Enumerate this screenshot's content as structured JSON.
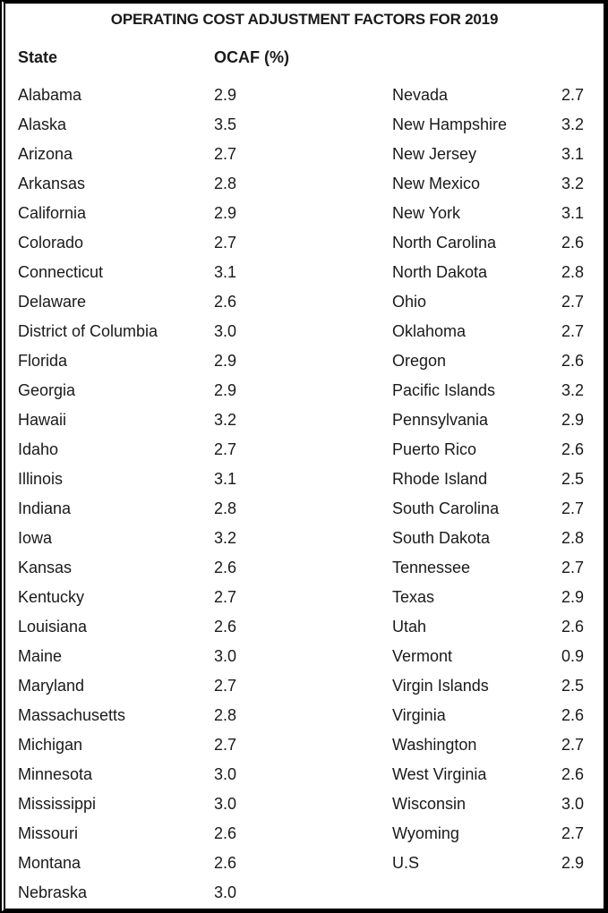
{
  "chart_data": {
    "type": "table",
    "title": "OPERATING COST ADJUSTMENT FACTORS FOR 2019",
    "columns": [
      "State",
      "OCAF (%)"
    ],
    "left_column_count": 28,
    "rows": [
      {
        "state": "Alabama",
        "ocaf": "2.9"
      },
      {
        "state": "Alaska",
        "ocaf": "3.5"
      },
      {
        "state": "Arizona",
        "ocaf": "2.7"
      },
      {
        "state": "Arkansas",
        "ocaf": "2.8"
      },
      {
        "state": "California",
        "ocaf": "2.9"
      },
      {
        "state": "Colorado",
        "ocaf": "2.7"
      },
      {
        "state": "Connecticut",
        "ocaf": "3.1"
      },
      {
        "state": "Delaware",
        "ocaf": "2.6"
      },
      {
        "state": "District of Columbia",
        "ocaf": "3.0"
      },
      {
        "state": "Florida",
        "ocaf": "2.9"
      },
      {
        "state": "Georgia",
        "ocaf": "2.9"
      },
      {
        "state": "Hawaii",
        "ocaf": "3.2"
      },
      {
        "state": "Idaho",
        "ocaf": "2.7"
      },
      {
        "state": "Illinois",
        "ocaf": "3.1"
      },
      {
        "state": "Indiana",
        "ocaf": "2.8"
      },
      {
        "state": "Iowa",
        "ocaf": "3.2"
      },
      {
        "state": "Kansas",
        "ocaf": "2.6"
      },
      {
        "state": "Kentucky",
        "ocaf": "2.7"
      },
      {
        "state": "Louisiana",
        "ocaf": "2.6"
      },
      {
        "state": "Maine",
        "ocaf": "3.0"
      },
      {
        "state": "Maryland",
        "ocaf": "2.7"
      },
      {
        "state": "Massachusetts",
        "ocaf": "2.8"
      },
      {
        "state": "Michigan",
        "ocaf": "2.7"
      },
      {
        "state": "Minnesota",
        "ocaf": "3.0"
      },
      {
        "state": "Mississippi",
        "ocaf": "3.0"
      },
      {
        "state": "Missouri",
        "ocaf": "2.6"
      },
      {
        "state": "Montana",
        "ocaf": "2.6"
      },
      {
        "state": "Nebraska",
        "ocaf": "3.0"
      },
      {
        "state": "Nevada",
        "ocaf": "2.7"
      },
      {
        "state": "New Hampshire",
        "ocaf": "3.2"
      },
      {
        "state": "New Jersey",
        "ocaf": "3.1"
      },
      {
        "state": "New Mexico",
        "ocaf": "3.2"
      },
      {
        "state": "New York",
        "ocaf": "3.1"
      },
      {
        "state": "North Carolina",
        "ocaf": "2.6"
      },
      {
        "state": "North Dakota",
        "ocaf": "2.8"
      },
      {
        "state": "Ohio",
        "ocaf": "2.7"
      },
      {
        "state": "Oklahoma",
        "ocaf": "2.7"
      },
      {
        "state": "Oregon",
        "ocaf": "2.6"
      },
      {
        "state": "Pacific Islands",
        "ocaf": "3.2"
      },
      {
        "state": "Pennsylvania",
        "ocaf": "2.9"
      },
      {
        "state": "Puerto Rico",
        "ocaf": "2.6"
      },
      {
        "state": "Rhode Island",
        "ocaf": "2.5"
      },
      {
        "state": "South Carolina",
        "ocaf": "2.7"
      },
      {
        "state": "South Dakota",
        "ocaf": "2.8"
      },
      {
        "state": "Tennessee",
        "ocaf": "2.7"
      },
      {
        "state": "Texas",
        "ocaf": "2.9"
      },
      {
        "state": "Utah",
        "ocaf": "2.6"
      },
      {
        "state": "Vermont",
        "ocaf": "0.9"
      },
      {
        "state": "Virgin Islands",
        "ocaf": "2.5"
      },
      {
        "state": "Virginia",
        "ocaf": "2.6"
      },
      {
        "state": "Washington",
        "ocaf": "2.7"
      },
      {
        "state": "West Virginia",
        "ocaf": "2.6"
      },
      {
        "state": "Wisconsin",
        "ocaf": "3.0"
      },
      {
        "state": "Wyoming",
        "ocaf": "2.7"
      },
      {
        "state": "U.S",
        "ocaf": "2.9"
      }
    ]
  },
  "colors": {
    "border": "#000000",
    "text": "#1a1a1a",
    "background": "#ffffff"
  }
}
